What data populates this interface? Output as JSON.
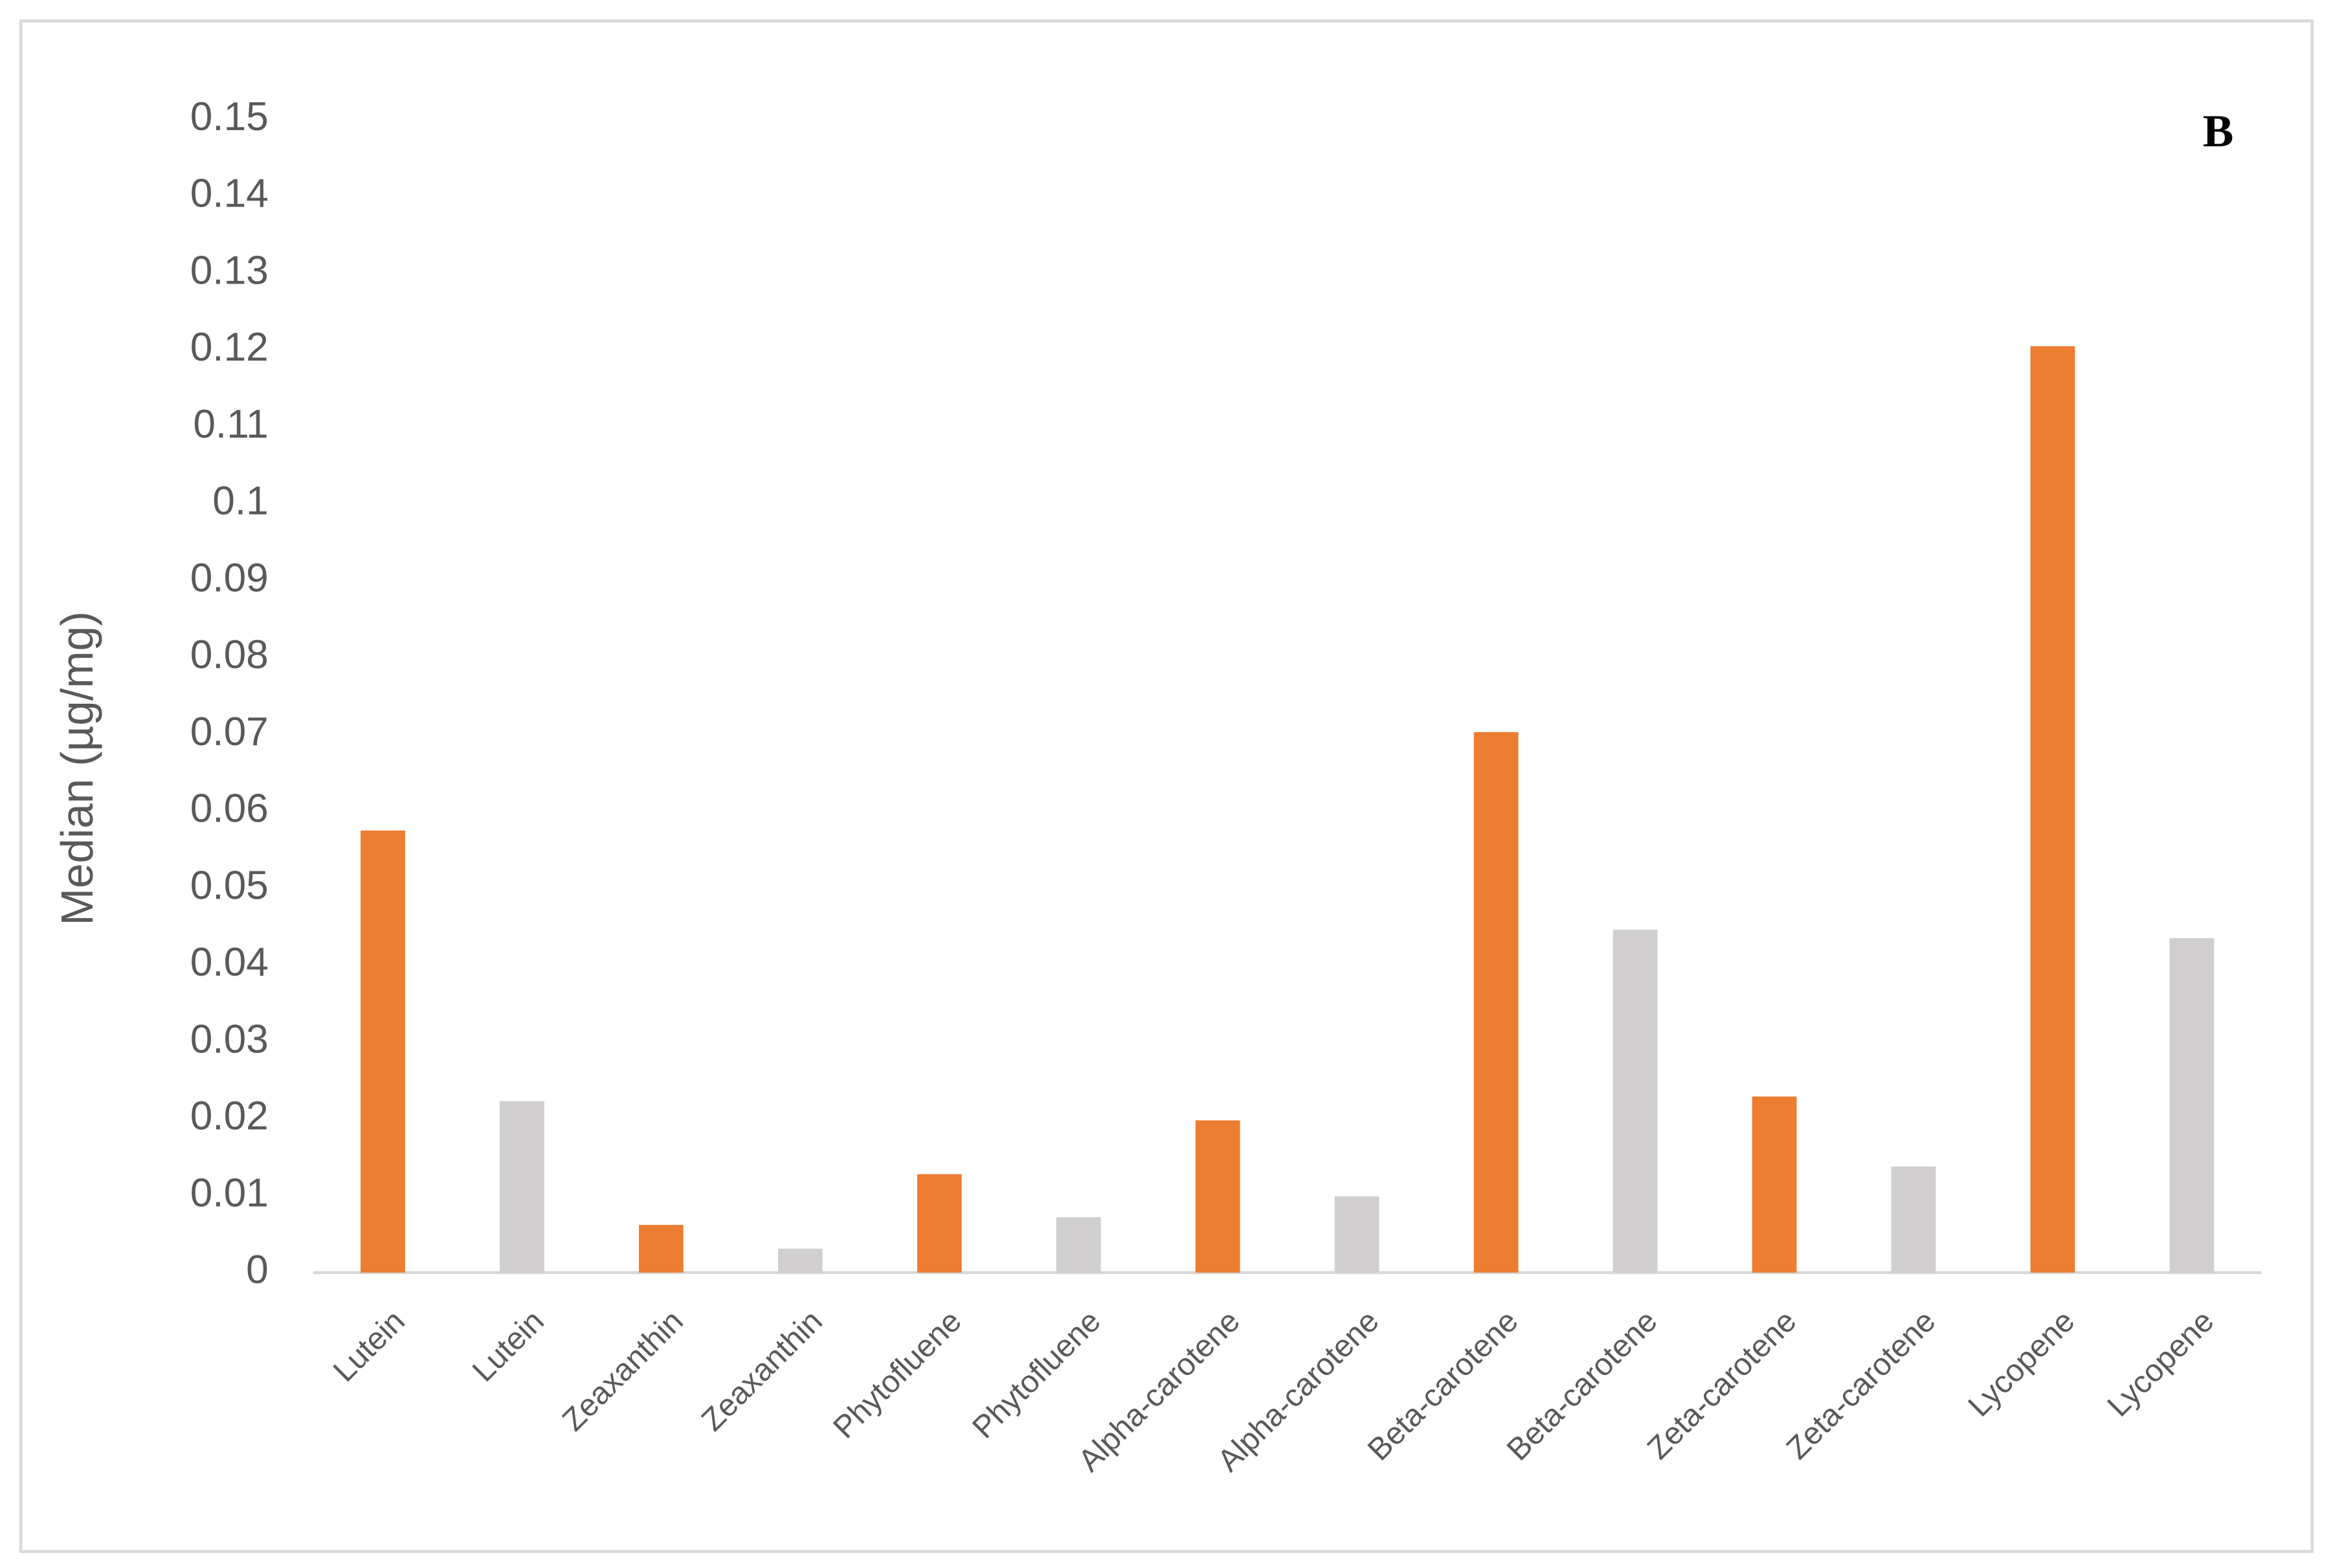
{
  "chart_data": {
    "type": "bar",
    "y_label": "Median (µg/mg)",
    "annotation": "B",
    "categories": [
      "Lutein",
      "Lutein",
      "Zeaxanthin",
      "Zeaxanthin",
      "Phytofluene",
      "Phytofluene",
      "Alpha-carotene",
      "Alpha-carotene",
      "Beta-carotene",
      "Beta-carotene",
      "Zeta-carotene",
      "Zeta-carotene",
      "Lycopene",
      "Lycopene"
    ],
    "values": [
      0.0575,
      0.0223,
      0.0062,
      0.0031,
      0.0128,
      0.0072,
      0.0198,
      0.0099,
      0.0703,
      0.0446,
      0.0229,
      0.0138,
      0.1205,
      0.0435
    ],
    "colors": [
      "#ed7d31",
      "#d0cece",
      "#ed7d31",
      "#d0cece",
      "#ed7d31",
      "#d0cece",
      "#ed7d31",
      "#d0cece",
      "#ed7d31",
      "#d0cece",
      "#ed7d31",
      "#d0cece",
      "#ed7d31",
      "#d0cece"
    ],
    "ylim": [
      0,
      0.15
    ],
    "yticks": [
      0,
      0.01,
      0.02,
      0.03,
      0.04,
      0.05,
      0.06,
      0.07,
      0.08,
      0.09,
      0.1,
      0.11,
      0.12,
      0.13,
      0.14,
      0.15
    ],
    "grid": false
  }
}
